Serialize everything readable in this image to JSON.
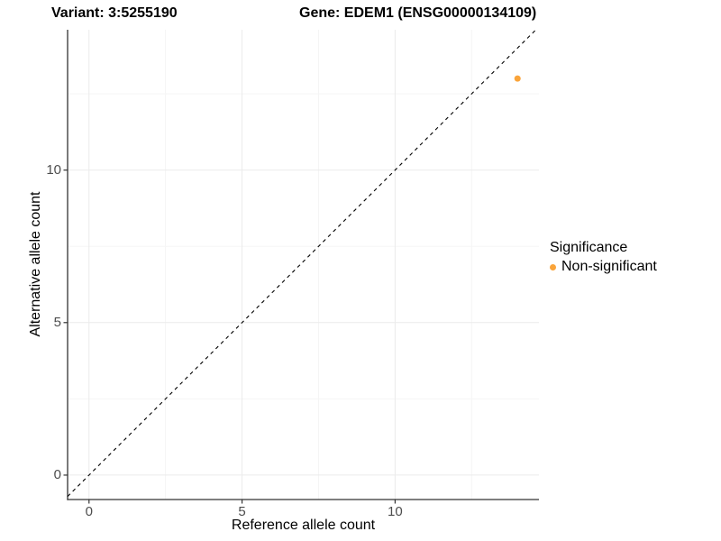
{
  "titles": {
    "variant": "Variant: 3:5255190",
    "gene": "Gene: EDEM1 (ENSG00000134109)"
  },
  "chart_data": {
    "type": "scatter",
    "title": "Variant: 3:5255190   Gene: EDEM1 (ENSG00000134109)",
    "xlabel": "Reference allele count",
    "ylabel": "Alternative allele count",
    "xlim": [
      -0.7,
      14.7
    ],
    "ylim": [
      -0.8,
      14.6
    ],
    "x_major_ticks": [
      0,
      5,
      10
    ],
    "y_major_ticks": [
      0,
      5,
      10
    ],
    "x_minor_gridlines": [
      2.5,
      7.5,
      12.5
    ],
    "y_minor_gridlines": [
      2.5,
      7.5,
      12.5
    ],
    "grid": "major+minor",
    "identity_line": {
      "slope": 1,
      "intercept": 0,
      "style": "dashed",
      "color": "#000000"
    },
    "points": [
      {
        "x": 14,
        "y": 13,
        "series": "Non-significant"
      }
    ],
    "legend": {
      "title": "Significance",
      "position": "right",
      "entries": [
        {
          "label": "Non-significant",
          "color": "#FAA43A"
        }
      ]
    },
    "colors": {
      "point": "#FAA43A",
      "axis_line": "#333333",
      "tick_text": "#4d4d4d",
      "grid_major": "#EBEBEB",
      "grid_minor": "#F5F5F5",
      "panel_background": "#FFFFFF"
    }
  }
}
